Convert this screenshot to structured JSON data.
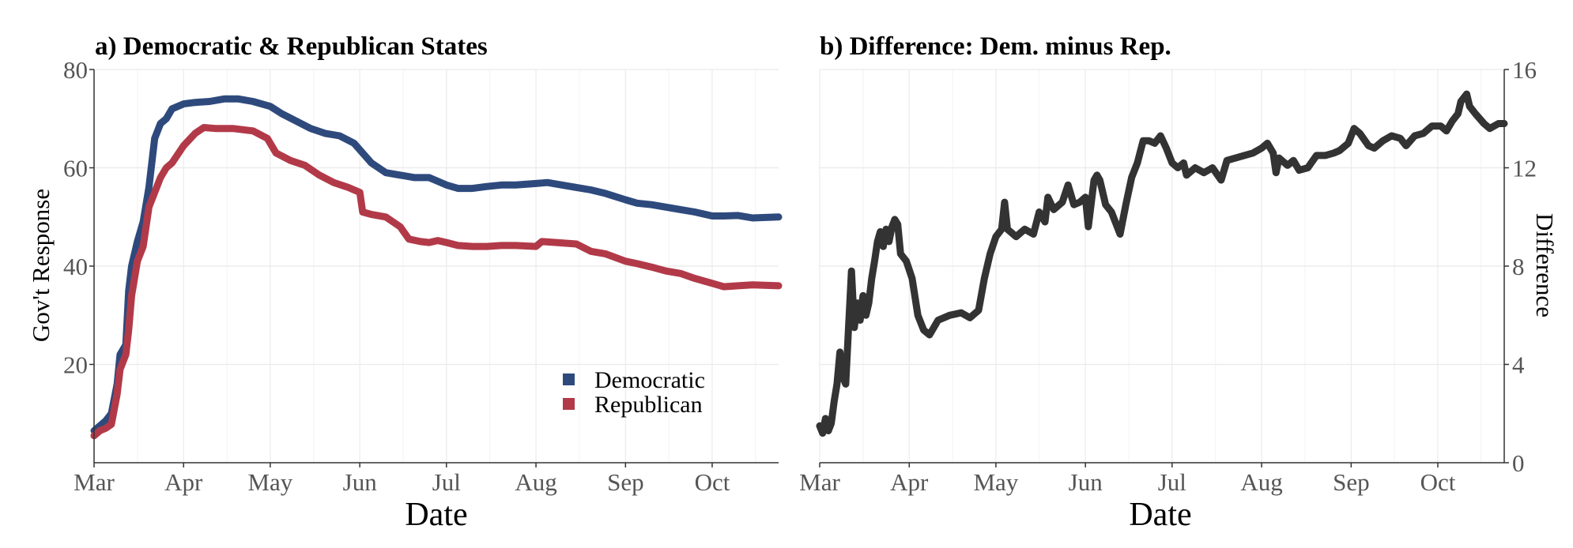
{
  "chart_data": [
    {
      "type": "line",
      "title": "a) Democratic & Republican States",
      "xlabel": "Date",
      "ylabel": "Gov't Response",
      "x_ticks": [
        "Mar",
        "Apr",
        "May",
        "Jun",
        "Jul",
        "Aug",
        "Sep",
        "Oct"
      ],
      "y_ticks": [
        "20",
        "40",
        "60",
        "80"
      ],
      "xlim": [
        "2020-03-01",
        "2020-10-24"
      ],
      "ylim": [
        0,
        80
      ],
      "grid": true,
      "legend_position": "bottom-right",
      "series": [
        {
          "name": "Democratic",
          "color": "#2e4a7d",
          "points": [
            [
              "2020-03-01",
              6.5
            ],
            [
              "2020-03-03",
              7.5
            ],
            [
              "2020-03-05",
              8.5
            ],
            [
              "2020-03-07",
              10
            ],
            [
              "2020-03-09",
              16
            ],
            [
              "2020-03-10",
              22
            ],
            [
              "2020-03-12",
              24
            ],
            [
              "2020-03-13",
              35
            ],
            [
              "2020-03-14",
              40
            ],
            [
              "2020-03-16",
              45
            ],
            [
              "2020-03-18",
              49
            ],
            [
              "2020-03-20",
              56
            ],
            [
              "2020-03-22",
              66
            ],
            [
              "2020-03-24",
              69
            ],
            [
              "2020-03-26",
              70
            ],
            [
              "2020-03-28",
              72
            ],
            [
              "2020-04-01",
              73
            ],
            [
              "2020-04-05",
              73.3
            ],
            [
              "2020-04-10",
              73.5
            ],
            [
              "2020-04-15",
              74
            ],
            [
              "2020-04-20",
              74
            ],
            [
              "2020-04-25",
              73.5
            ],
            [
              "2020-05-01",
              72.5
            ],
            [
              "2020-05-05",
              71
            ],
            [
              "2020-05-10",
              69.5
            ],
            [
              "2020-05-15",
              68
            ],
            [
              "2020-05-20",
              67
            ],
            [
              "2020-05-25",
              66.5
            ],
            [
              "2020-05-30",
              65
            ],
            [
              "2020-06-02",
              63
            ],
            [
              "2020-06-05",
              61
            ],
            [
              "2020-06-10",
              59
            ],
            [
              "2020-06-15",
              58.5
            ],
            [
              "2020-06-20",
              58
            ],
            [
              "2020-06-25",
              58
            ],
            [
              "2020-07-01",
              56.5
            ],
            [
              "2020-07-05",
              55.8
            ],
            [
              "2020-07-10",
              55.8
            ],
            [
              "2020-07-15",
              56.2
            ],
            [
              "2020-07-20",
              56.5
            ],
            [
              "2020-07-25",
              56.5
            ],
            [
              "2020-08-01",
              56.8
            ],
            [
              "2020-08-05",
              57
            ],
            [
              "2020-08-10",
              56.5
            ],
            [
              "2020-08-15",
              56
            ],
            [
              "2020-08-20",
              55.5
            ],
            [
              "2020-08-25",
              54.8
            ],
            [
              "2020-09-01",
              53.5
            ],
            [
              "2020-09-05",
              52.8
            ],
            [
              "2020-09-10",
              52.5
            ],
            [
              "2020-09-15",
              52
            ],
            [
              "2020-09-20",
              51.5
            ],
            [
              "2020-09-25",
              51
            ],
            [
              "2020-10-01",
              50.2
            ],
            [
              "2020-10-05",
              50.2
            ],
            [
              "2020-10-10",
              50.3
            ],
            [
              "2020-10-15",
              49.8
            ],
            [
              "2020-10-24",
              50
            ]
          ]
        },
        {
          "name": "Republican",
          "color": "#b23a48",
          "points": [
            [
              "2020-03-01",
              5.5
            ],
            [
              "2020-03-03",
              6.5
            ],
            [
              "2020-03-05",
              7
            ],
            [
              "2020-03-07",
              7.8
            ],
            [
              "2020-03-09",
              14
            ],
            [
              "2020-03-10",
              19
            ],
            [
              "2020-03-12",
              22
            ],
            [
              "2020-03-13",
              27
            ],
            [
              "2020-03-14",
              34
            ],
            [
              "2020-03-16",
              41
            ],
            [
              "2020-03-18",
              44
            ],
            [
              "2020-03-20",
              52
            ],
            [
              "2020-03-22",
              55
            ],
            [
              "2020-03-24",
              58
            ],
            [
              "2020-03-26",
              60
            ],
            [
              "2020-03-28",
              61
            ],
            [
              "2020-04-01",
              64.5
            ],
            [
              "2020-04-05",
              67
            ],
            [
              "2020-04-08",
              68.2
            ],
            [
              "2020-04-12",
              68
            ],
            [
              "2020-04-18",
              68
            ],
            [
              "2020-04-25",
              67.5
            ],
            [
              "2020-04-30",
              66
            ],
            [
              "2020-05-03",
              63
            ],
            [
              "2020-05-08",
              61.5
            ],
            [
              "2020-05-13",
              60.5
            ],
            [
              "2020-05-18",
              58.5
            ],
            [
              "2020-05-23",
              57
            ],
            [
              "2020-05-28",
              56
            ],
            [
              "2020-06-01",
              55
            ],
            [
              "2020-06-02",
              51
            ],
            [
              "2020-06-05",
              50.5
            ],
            [
              "2020-06-10",
              50
            ],
            [
              "2020-06-15",
              48
            ],
            [
              "2020-06-18",
              45.5
            ],
            [
              "2020-06-22",
              45
            ],
            [
              "2020-06-25",
              44.8
            ],
            [
              "2020-06-28",
              45.2
            ],
            [
              "2020-07-01",
              44.8
            ],
            [
              "2020-07-05",
              44.2
            ],
            [
              "2020-07-10",
              44
            ],
            [
              "2020-07-15",
              44
            ],
            [
              "2020-07-20",
              44.2
            ],
            [
              "2020-07-25",
              44.2
            ],
            [
              "2020-08-01",
              44
            ],
            [
              "2020-08-03",
              45
            ],
            [
              "2020-08-08",
              44.8
            ],
            [
              "2020-08-15",
              44.5
            ],
            [
              "2020-08-20",
              43
            ],
            [
              "2020-08-25",
              42.5
            ],
            [
              "2020-09-01",
              41
            ],
            [
              "2020-09-05",
              40.5
            ],
            [
              "2020-09-10",
              39.8
            ],
            [
              "2020-09-15",
              39
            ],
            [
              "2020-09-20",
              38.5
            ],
            [
              "2020-09-25",
              37.5
            ],
            [
              "2020-10-01",
              36.5
            ],
            [
              "2020-10-05",
              35.8
            ],
            [
              "2020-10-10",
              36
            ],
            [
              "2020-10-15",
              36.2
            ],
            [
              "2020-10-24",
              36
            ]
          ]
        }
      ]
    },
    {
      "type": "line",
      "title": "b) Difference: Dem. minus Rep.",
      "xlabel": "Date",
      "ylabel": "Difference",
      "y_axis_side": "right",
      "x_ticks": [
        "Mar",
        "Apr",
        "May",
        "Jun",
        "Jul",
        "Aug",
        "Sep",
        "Oct"
      ],
      "y_ticks": [
        "0",
        "4",
        "8",
        "12",
        "16"
      ],
      "xlim": [
        "2020-03-01",
        "2020-10-24"
      ],
      "ylim": [
        0,
        16
      ],
      "grid": true,
      "series": [
        {
          "color": "#333333",
          "points": [
            [
              "2020-03-01",
              1.5
            ],
            [
              "2020-03-02",
              1.2
            ],
            [
              "2020-03-03",
              1.8
            ],
            [
              "2020-03-04",
              1.3
            ],
            [
              "2020-03-05",
              1.6
            ],
            [
              "2020-03-06",
              2.5
            ],
            [
              "2020-03-07",
              3.2
            ],
            [
              "2020-03-08",
              4.5
            ],
            [
              "2020-03-09",
              3.5
            ],
            [
              "2020-03-10",
              3.2
            ],
            [
              "2020-03-11",
              5.5
            ],
            [
              "2020-03-12",
              7.8
            ],
            [
              "2020-03-13",
              5.5
            ],
            [
              "2020-03-14",
              6.5
            ],
            [
              "2020-03-15",
              5.8
            ],
            [
              "2020-03-16",
              6.8
            ],
            [
              "2020-03-17",
              6
            ],
            [
              "2020-03-18",
              6.5
            ],
            [
              "2020-03-19",
              7.5
            ],
            [
              "2020-03-20",
              8.2
            ],
            [
              "2020-03-21",
              9
            ],
            [
              "2020-03-22",
              9.4
            ],
            [
              "2020-03-23",
              8.8
            ],
            [
              "2020-03-24",
              9.5
            ],
            [
              "2020-03-25",
              9
            ],
            [
              "2020-03-26",
              9.6
            ],
            [
              "2020-03-27",
              9.9
            ],
            [
              "2020-03-28",
              9.7
            ],
            [
              "2020-03-29",
              8.5
            ],
            [
              "2020-03-31",
              8.2
            ],
            [
              "2020-04-02",
              7.5
            ],
            [
              "2020-04-04",
              6
            ],
            [
              "2020-04-06",
              5.4
            ],
            [
              "2020-04-08",
              5.2
            ],
            [
              "2020-04-11",
              5.8
            ],
            [
              "2020-04-15",
              6
            ],
            [
              "2020-04-19",
              6.1
            ],
            [
              "2020-04-22",
              5.9
            ],
            [
              "2020-04-25",
              6.2
            ],
            [
              "2020-04-27",
              7.5
            ],
            [
              "2020-04-29",
              8.5
            ],
            [
              "2020-05-01",
              9.2
            ],
            [
              "2020-05-03",
              9.5
            ],
            [
              "2020-05-04",
              10.6
            ],
            [
              "2020-05-05",
              9.5
            ],
            [
              "2020-05-08",
              9.2
            ],
            [
              "2020-05-11",
              9.5
            ],
            [
              "2020-05-14",
              9.3
            ],
            [
              "2020-05-16",
              10.2
            ],
            [
              "2020-05-18",
              9.8
            ],
            [
              "2020-05-19",
              10.8
            ],
            [
              "2020-05-21",
              10.3
            ],
            [
              "2020-05-24",
              10.6
            ],
            [
              "2020-05-26",
              11.3
            ],
            [
              "2020-05-28",
              10.5
            ],
            [
              "2020-05-30",
              10.6
            ],
            [
              "2020-06-01",
              10.8
            ],
            [
              "2020-06-02",
              9.6
            ],
            [
              "2020-06-04",
              11.5
            ],
            [
              "2020-06-05",
              11.7
            ],
            [
              "2020-06-06",
              11.5
            ],
            [
              "2020-06-08",
              10.5
            ],
            [
              "2020-06-10",
              10.2
            ],
            [
              "2020-06-13",
              9.3
            ],
            [
              "2020-06-15",
              10.5
            ],
            [
              "2020-06-17",
              11.6
            ],
            [
              "2020-06-19",
              12.2
            ],
            [
              "2020-06-21",
              13.1
            ],
            [
              "2020-06-23",
              13.1
            ],
            [
              "2020-06-25",
              13
            ],
            [
              "2020-06-27",
              13.3
            ],
            [
              "2020-06-29",
              12.8
            ],
            [
              "2020-07-01",
              12.2
            ],
            [
              "2020-07-03",
              12
            ],
            [
              "2020-07-05",
              12.2
            ],
            [
              "2020-07-06",
              11.7
            ],
            [
              "2020-07-09",
              12
            ],
            [
              "2020-07-12",
              11.8
            ],
            [
              "2020-07-15",
              12
            ],
            [
              "2020-07-18",
              11.5
            ],
            [
              "2020-07-20",
              12.3
            ],
            [
              "2020-07-23",
              12.4
            ],
            [
              "2020-07-26",
              12.5
            ],
            [
              "2020-07-29",
              12.6
            ],
            [
              "2020-08-01",
              12.8
            ],
            [
              "2020-08-03",
              13
            ],
            [
              "2020-08-05",
              12.6
            ],
            [
              "2020-08-06",
              11.8
            ],
            [
              "2020-08-07",
              12.4
            ],
            [
              "2020-08-10",
              12.1
            ],
            [
              "2020-08-12",
              12.3
            ],
            [
              "2020-08-14",
              11.9
            ],
            [
              "2020-08-17",
              12
            ],
            [
              "2020-08-20",
              12.5
            ],
            [
              "2020-08-23",
              12.5
            ],
            [
              "2020-08-26",
              12.6
            ],
            [
              "2020-08-28",
              12.7
            ],
            [
              "2020-08-31",
              13
            ],
            [
              "2020-09-02",
              13.6
            ],
            [
              "2020-09-04",
              13.4
            ],
            [
              "2020-09-07",
              12.9
            ],
            [
              "2020-09-09",
              12.8
            ],
            [
              "2020-09-12",
              13.1
            ],
            [
              "2020-09-15",
              13.3
            ],
            [
              "2020-09-18",
              13.2
            ],
            [
              "2020-09-20",
              12.9
            ],
            [
              "2020-09-23",
              13.3
            ],
            [
              "2020-09-26",
              13.4
            ],
            [
              "2020-09-29",
              13.7
            ],
            [
              "2020-10-02",
              13.7
            ],
            [
              "2020-10-04",
              13.5
            ],
            [
              "2020-10-06",
              13.9
            ],
            [
              "2020-10-08",
              14.2
            ],
            [
              "2020-10-09",
              14.7
            ],
            [
              "2020-10-11",
              15
            ],
            [
              "2020-10-12",
              14.5
            ],
            [
              "2020-10-14",
              14.2
            ],
            [
              "2020-10-17",
              13.8
            ],
            [
              "2020-10-19",
              13.6
            ],
            [
              "2020-10-22",
              13.8
            ],
            [
              "2020-10-24",
              13.8
            ]
          ]
        }
      ]
    }
  ]
}
